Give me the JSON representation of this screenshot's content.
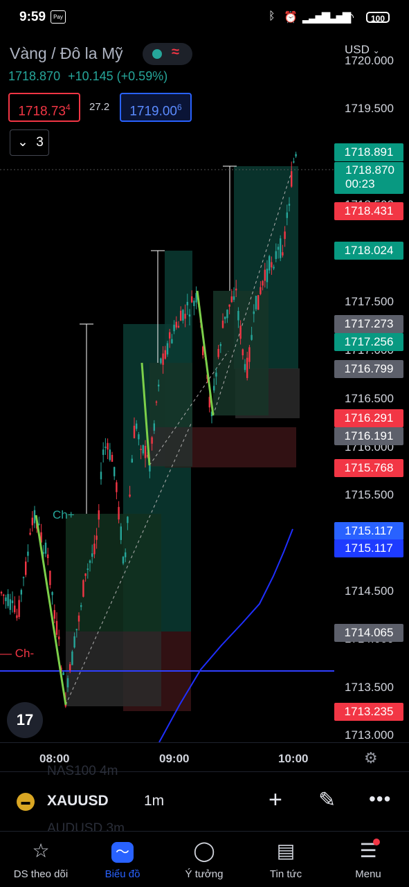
{
  "status_bar": {
    "time": "9:59",
    "battery": "100",
    "icons": [
      "payment-icon",
      "bluetooth-icon",
      "alarm-icon",
      "signal-icon",
      "signal-icon",
      "wifi-icon",
      "battery-icon"
    ]
  },
  "header": {
    "title": "Vàng / Đô la Mỹ",
    "last_price": "1718.870",
    "change": "+10.145 (+0.59%)",
    "currency": "USD",
    "sell_price": "1718.73",
    "sell_price_sup": "4",
    "spread": "27.2",
    "buy_price": "1719.00",
    "buy_price_sup": "6",
    "indicator_count": "3"
  },
  "price_axis": {
    "labels": [
      "1720.000",
      "1719.500",
      "1718.500",
      "1717.500",
      "1717.000",
      "1716.500",
      "1716.000",
      "1715.500",
      "1714.500",
      "1714.000",
      "1713.500",
      "1713.000"
    ]
  },
  "price_tags": [
    {
      "value": "1718.891",
      "color": "#089981"
    },
    {
      "value": "1718.870",
      "sub": "00:23",
      "color": "#089981"
    },
    {
      "value": "1718.431",
      "color": "#f23645"
    },
    {
      "value": "1718.024",
      "color": "#089981"
    },
    {
      "value": "1717.273",
      "color": "#5d606b"
    },
    {
      "value": "1717.256",
      "color": "#089981"
    },
    {
      "value": "1716.799",
      "color": "#5d606b"
    },
    {
      "value": "1716.291",
      "color": "#f23645"
    },
    {
      "value": "1716.191",
      "color": "#5d606b"
    },
    {
      "value": "1715.768",
      "color": "#f23645"
    },
    {
      "value": "1715.117",
      "color": "#2962ff"
    },
    {
      "value": "1715.117",
      "color": "#1e3bff"
    },
    {
      "value": "1714.065",
      "color": "#5d606b"
    },
    {
      "value": "1713.235",
      "color": "#f23645"
    }
  ],
  "chart_annotations": {
    "choch_up": "Ch+",
    "choch_down": "Ch-"
  },
  "time_axis": [
    "08:00",
    "09:00",
    "10:00"
  ],
  "instrument_bar": {
    "symbol": "XAUUSD",
    "interval": "1m",
    "ghost_above": "NAS100      4m",
    "ghost_below": "AUDUSD      3m"
  },
  "nav": [
    {
      "label": "DS theo dõi",
      "icon": "star-icon"
    },
    {
      "label": "Biểu đồ",
      "icon": "chart-icon",
      "active": true
    },
    {
      "label": "Ý tưởng",
      "icon": "lightbulb-icon"
    },
    {
      "label": "Tin tức",
      "icon": "news-icon"
    },
    {
      "label": "Menu",
      "icon": "menu-icon"
    }
  ],
  "colors": {
    "up": "#26a69a",
    "down": "#f23645",
    "accent": "#2962ff"
  }
}
